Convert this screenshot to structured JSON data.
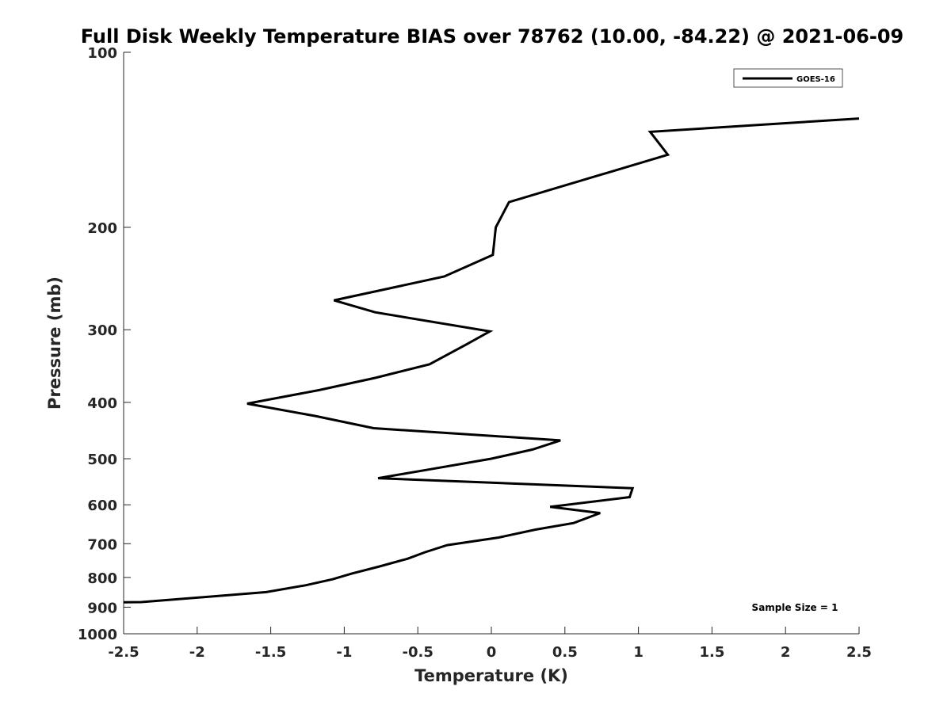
{
  "chart_data": {
    "type": "line",
    "title": "Full Disk Weekly Temperature BIAS over 78762 (10.00, -84.22) @ 2021-06-09",
    "xlabel": "Temperature (K)",
    "ylabel": "Pressure (mb)",
    "xlim": [
      -2.5,
      2.5
    ],
    "ylim": [
      100,
      1000
    ],
    "y_scale": "log",
    "y_reversed": true,
    "x_ticks": [
      "-2.5",
      "-2",
      "-1.5",
      "-1",
      "-0.5",
      "0",
      "0.5",
      "1",
      "1.5",
      "2",
      "2.5"
    ],
    "y_ticks": [
      "100",
      "200",
      "300",
      "400",
      "500",
      "600",
      "700",
      "800",
      "900",
      "1000"
    ],
    "grid": false,
    "legend_position": "top-right",
    "annotation": "Sample Size = 1",
    "series": [
      {
        "name": "GOES-16",
        "color": "#000000",
        "points": [
          [
            2.5,
            130
          ],
          [
            1.08,
            137
          ],
          [
            1.2,
            150
          ],
          [
            0.12,
            181
          ],
          [
            0.03,
            200
          ],
          [
            0.01,
            223
          ],
          [
            -0.32,
            243
          ],
          [
            -1.07,
            267
          ],
          [
            -0.79,
            280
          ],
          [
            -0.01,
            302
          ],
          [
            -0.17,
            318
          ],
          [
            -0.42,
            344
          ],
          [
            -0.79,
            363
          ],
          [
            -1.17,
            381
          ],
          [
            -1.66,
            402
          ],
          [
            -1.2,
            422
          ],
          [
            -0.8,
            443
          ],
          [
            0.47,
            465
          ],
          [
            0.28,
            482
          ],
          [
            0.0,
            500
          ],
          [
            -0.43,
            522
          ],
          [
            -0.77,
            540
          ],
          [
            0.96,
            562
          ],
          [
            0.94,
            582
          ],
          [
            0.4,
            605
          ],
          [
            0.74,
            620
          ],
          [
            0.56,
            645
          ],
          [
            0.3,
            662
          ],
          [
            0.05,
            683
          ],
          [
            -0.3,
            704
          ],
          [
            -0.45,
            724
          ],
          [
            -0.57,
            743
          ],
          [
            -0.76,
            766
          ],
          [
            -0.95,
            788
          ],
          [
            -1.08,
            806
          ],
          [
            -1.26,
            825
          ],
          [
            -1.53,
            848
          ],
          [
            -2.38,
            882
          ],
          [
            -2.5,
            883
          ]
        ]
      }
    ]
  }
}
